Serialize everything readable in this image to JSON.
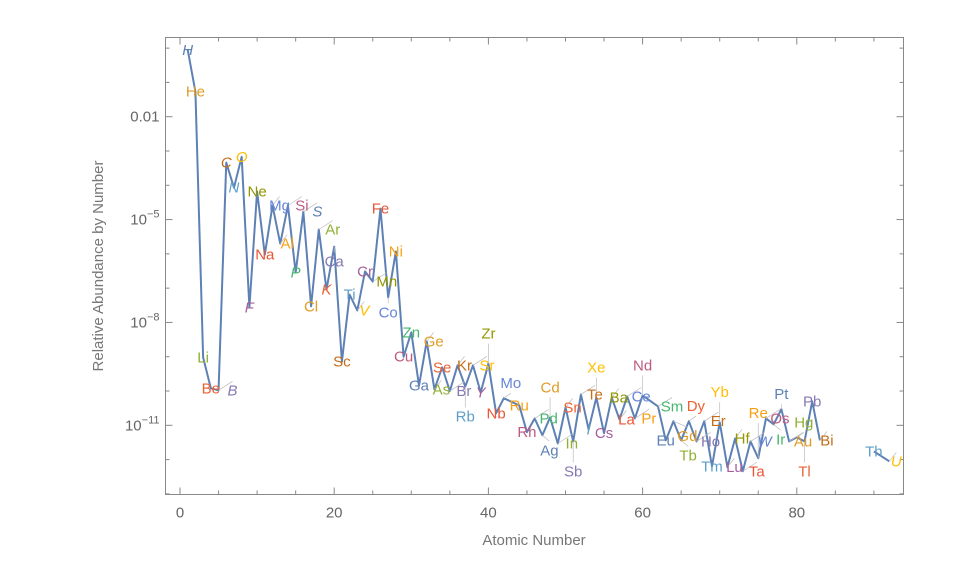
{
  "chart_data": {
    "type": "line",
    "xlabel": "Atomic Number",
    "ylabel": "Relative Abundance by Number",
    "xlim": [
      -2,
      94
    ],
    "ylim_log10": [
      -13.1,
      0.4
    ],
    "y_scale": "log",
    "grid": false,
    "legend": "none",
    "line_color": "#5E81B5",
    "x_ticks": [
      0,
      20,
      40,
      60,
      80
    ],
    "y_ticks": [
      {
        "log10": -2,
        "label": "0.01"
      },
      {
        "log10": -5,
        "base": "10",
        "exp": "−5"
      },
      {
        "log10": -8,
        "base": "10",
        "exp": "−8"
      },
      {
        "log10": -11,
        "base": "10",
        "exp": "−11"
      }
    ],
    "label_palette": [
      "#5E81B5",
      "#E19C24",
      "#8FB032",
      "#EB6235",
      "#8778B3",
      "#C56E1A",
      "#5D9EC7",
      "#FFBF00",
      "#A5609D",
      "#929600",
      "#E95536",
      "#6685D9",
      "#F89F13",
      "#BC5B80",
      "#47B66D"
    ],
    "points": [
      {
        "z": 1,
        "symbol": "H",
        "log10": -0.05
      },
      {
        "z": 2,
        "symbol": "He",
        "log10": -1.27
      },
      {
        "z": 3,
        "symbol": "Li",
        "log10": -9.02
      },
      {
        "z": 4,
        "symbol": "Be",
        "log10": -9.92
      },
      {
        "z": 5,
        "symbol": "B",
        "log10": -9.98
      },
      {
        "z": 6,
        "symbol": "C",
        "log10": -3.34
      },
      {
        "z": 7,
        "symbol": "N",
        "log10": -4.07
      },
      {
        "z": 8,
        "symbol": "O",
        "log10": -3.17
      },
      {
        "z": 9,
        "symbol": "F",
        "log10": -7.56
      },
      {
        "z": 10,
        "symbol": "Ne",
        "log10": -4.18
      },
      {
        "z": 11,
        "symbol": "Na",
        "log10": -6.02
      },
      {
        "z": 12,
        "symbol": "Mg",
        "log10": -4.59
      },
      {
        "z": 13,
        "symbol": "Al",
        "log10": -5.7
      },
      {
        "z": 14,
        "symbol": "Si",
        "log10": -4.59
      },
      {
        "z": 15,
        "symbol": "P",
        "log10": -6.54
      },
      {
        "z": 16,
        "symbol": "S",
        "log10": -4.77
      },
      {
        "z": 17,
        "symbol": "Cl",
        "log10": -7.53
      },
      {
        "z": 18,
        "symbol": "Ar",
        "log10": -5.29
      },
      {
        "z": 19,
        "symbol": "K",
        "log10": -7.04
      },
      {
        "z": 20,
        "symbol": "Ca",
        "log10": -5.79
      },
      {
        "z": 21,
        "symbol": "Sc",
        "log10": -9.14
      },
      {
        "z": 22,
        "symbol": "Ti",
        "log10": -7.19
      },
      {
        "z": 23,
        "symbol": "V",
        "log10": -7.65
      },
      {
        "z": 24,
        "symbol": "Cr",
        "log10": -6.51
      },
      {
        "z": 25,
        "symbol": "Mn",
        "log10": -6.81
      },
      {
        "z": 26,
        "symbol": "Fe",
        "log10": -4.68
      },
      {
        "z": 27,
        "symbol": "Co",
        "log10": -7.27
      },
      {
        "z": 28,
        "symbol": "Ni",
        "log10": -5.93
      },
      {
        "z": 29,
        "symbol": "Cu",
        "log10": -9.0
      },
      {
        "z": 30,
        "symbol": "Zn",
        "log10": -8.29
      },
      {
        "z": 31,
        "symbol": "Ga",
        "log10": -9.84
      },
      {
        "z": 32,
        "symbol": "Ge",
        "log10": -8.55
      },
      {
        "z": 33,
        "symbol": "As",
        "log10": -9.95
      },
      {
        "z": 34,
        "symbol": "Se",
        "log10": -9.31
      },
      {
        "z": 35,
        "symbol": "Br",
        "log10": -10.0
      },
      {
        "z": 36,
        "symbol": "Kr",
        "log10": -9.25
      },
      {
        "z": 37,
        "symbol": "Rb",
        "log10": -9.87
      },
      {
        "z": 38,
        "symbol": "Sr",
        "log10": -9.25
      },
      {
        "z": 39,
        "symbol": "Y",
        "log10": -10.04
      },
      {
        "z": 40,
        "symbol": "Zr",
        "log10": -9.2
      },
      {
        "z": 41,
        "symbol": "Nb",
        "log10": -10.65
      },
      {
        "z": 42,
        "symbol": "Mo",
        "log10": -10.21
      },
      {
        "z": 44,
        "symbol": "Ru",
        "log10": -10.42
      },
      {
        "z": 45,
        "symbol": "Rh",
        "log10": -11.2
      },
      {
        "z": 46,
        "symbol": "Pd",
        "log10": -10.8
      },
      {
        "z": 47,
        "symbol": "Ag",
        "log10": -11.29
      },
      {
        "z": 48,
        "symbol": "Cd",
        "log10": -10.77
      },
      {
        "z": 49,
        "symbol": "In",
        "log10": -11.53
      },
      {
        "z": 50,
        "symbol": "Sn",
        "log10": -10.48
      },
      {
        "z": 51,
        "symbol": "Sb",
        "log10": -11.47
      },
      {
        "z": 52,
        "symbol": "Te",
        "log10": -10.1
      },
      {
        "z": 53,
        "symbol": "I",
        "log10": -11.12
      },
      {
        "z": 54,
        "symbol": "Xe",
        "log10": -10.19
      },
      {
        "z": 55,
        "symbol": "Cs",
        "log10": -11.23
      },
      {
        "z": 56,
        "symbol": "Ba",
        "log10": -10.19
      },
      {
        "z": 57,
        "symbol": "La",
        "log10": -10.83
      },
      {
        "z": 58,
        "symbol": "Ce",
        "log10": -10.16
      },
      {
        "z": 59,
        "symbol": "Pr",
        "log10": -10.8
      },
      {
        "z": 60,
        "symbol": "Nd",
        "log10": -10.13
      },
      {
        "z": 62,
        "symbol": "Sm",
        "log10": -10.45
      },
      {
        "z": 63,
        "symbol": "Eu",
        "log10": -11.44
      },
      {
        "z": 64,
        "symbol": "Gd",
        "log10": -10.88
      },
      {
        "z": 65,
        "symbol": "Tb",
        "log10": -11.44
      },
      {
        "z": 66,
        "symbol": "Dy",
        "log10": -10.88
      },
      {
        "z": 67,
        "symbol": "Ho",
        "log10": -11.47
      },
      {
        "z": 68,
        "symbol": "Er",
        "log10": -10.88
      },
      {
        "z": 69,
        "symbol": "Tm",
        "log10": -12.2
      },
      {
        "z": 70,
        "symbol": "Yb",
        "log10": -10.91
      },
      {
        "z": 71,
        "symbol": "Lu",
        "log10": -12.22
      },
      {
        "z": 72,
        "symbol": "Hf",
        "log10": -11.38
      },
      {
        "z": 73,
        "symbol": "Ta",
        "log10": -12.34
      },
      {
        "z": 74,
        "symbol": "W",
        "log10": -11.47
      },
      {
        "z": 75,
        "symbol": "Re",
        "log10": -11.96
      },
      {
        "z": 76,
        "symbol": "Os",
        "log10": -10.8
      },
      {
        "z": 77,
        "symbol": "Ir",
        "log10": -10.97
      },
      {
        "z": 78,
        "symbol": "Pt",
        "log10": -10.53
      },
      {
        "z": 79,
        "symbol": "Au",
        "log10": -11.47
      },
      {
        "z": 80,
        "symbol": "Hg",
        "log10": -11.35
      },
      {
        "z": 81,
        "symbol": "Tl",
        "log10": -11.47
      },
      {
        "z": 82,
        "symbol": "Pb",
        "log10": -10.3
      },
      {
        "z": 83,
        "symbol": "Bi",
        "log10": -11.44
      },
      {
        "z": 90,
        "symbol": "Th",
        "log10": -11.76
      },
      {
        "z": 92,
        "symbol": "U",
        "log10": -12.05
      }
    ]
  }
}
